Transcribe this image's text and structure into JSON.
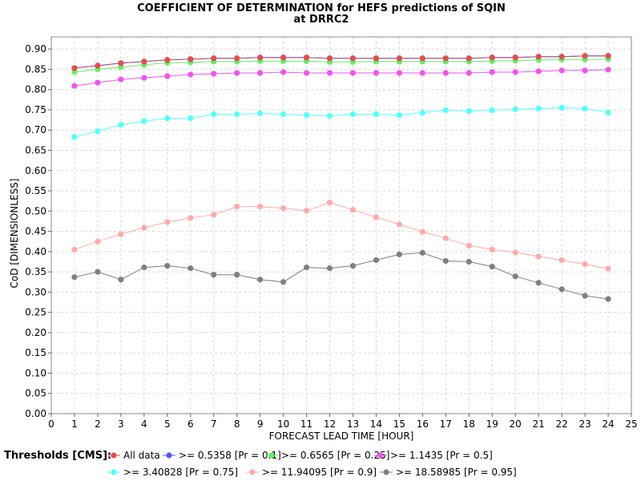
{
  "chart_data": {
    "type": "line",
    "title": "COEFFICIENT OF DETERMINATION for HEFS predictions of SQIN",
    "subtitle": "at DRRC2",
    "xlabel": "FORECAST LEAD TIME [HOUR]",
    "ylabel": "CoD [DIMENSIONLESS]",
    "xlim": [
      0,
      25
    ],
    "ylim": [
      0,
      0.93
    ],
    "xticks": [
      "0",
      "1",
      "2",
      "3",
      "4",
      "5",
      "6",
      "7",
      "8",
      "9",
      "10",
      "11",
      "12",
      "13",
      "14",
      "15",
      "16",
      "17",
      "18",
      "19",
      "20",
      "21",
      "22",
      "23",
      "24",
      "25"
    ],
    "yticks": [
      "0.00",
      "0.05",
      "0.10",
      "0.15",
      "0.20",
      "0.25",
      "0.30",
      "0.35",
      "0.40",
      "0.45",
      "0.50",
      "0.55",
      "0.60",
      "0.65",
      "0.70",
      "0.75",
      "0.80",
      "0.85",
      "0.90"
    ],
    "grid": true,
    "legend_title": "Thresholds [CMS]:",
    "legend_position": "bottom",
    "x": [
      1,
      2,
      3,
      4,
      5,
      6,
      7,
      8,
      9,
      10,
      11,
      12,
      13,
      14,
      15,
      16,
      17,
      18,
      19,
      20,
      21,
      22,
      23,
      24
    ],
    "series": [
      {
        "name": "All data",
        "color": "#e05050",
        "line_color": "#b05070",
        "values": [
          0.853,
          0.859,
          0.865,
          0.869,
          0.873,
          0.875,
          0.877,
          0.877,
          0.879,
          0.879,
          0.879,
          0.877,
          0.877,
          0.877,
          0.877,
          0.877,
          0.877,
          0.877,
          0.879,
          0.879,
          0.881,
          0.881,
          0.883,
          0.883
        ]
      },
      {
        "name": ">= 0.5358 [Pr = 0.1]",
        "color": "#5555ee",
        "line_color": "#5555ee",
        "values": [
          0.853,
          0.859,
          0.865,
          0.869,
          0.873,
          0.875,
          0.877,
          0.877,
          0.879,
          0.879,
          0.879,
          0.877,
          0.877,
          0.877,
          0.877,
          0.877,
          0.877,
          0.877,
          0.879,
          0.879,
          0.881,
          0.881,
          0.883,
          0.883
        ]
      },
      {
        "name": ">= 0.6565 [Pr = 0.25]",
        "color": "#66ee66",
        "line_color": "#66ee66",
        "values": [
          0.843,
          0.85,
          0.855,
          0.861,
          0.866,
          0.867,
          0.869,
          0.869,
          0.87,
          0.87,
          0.87,
          0.868,
          0.868,
          0.869,
          0.869,
          0.869,
          0.869,
          0.869,
          0.87,
          0.871,
          0.873,
          0.874,
          0.874,
          0.875
        ]
      },
      {
        "name": ">= 1.1435 [Pr = 0.5]",
        "color": "#ee55ee",
        "line_color": "#ee55ee",
        "values": [
          0.809,
          0.817,
          0.825,
          0.829,
          0.833,
          0.837,
          0.839,
          0.841,
          0.841,
          0.843,
          0.841,
          0.841,
          0.841,
          0.841,
          0.841,
          0.841,
          0.841,
          0.841,
          0.843,
          0.843,
          0.845,
          0.847,
          0.847,
          0.849
        ]
      },
      {
        "name": ">= 3.40828 [Pr = 0.75]",
        "color": "#55ffff",
        "line_color": "#55ffff",
        "values": [
          0.683,
          0.697,
          0.713,
          0.722,
          0.729,
          0.729,
          0.739,
          0.739,
          0.741,
          0.739,
          0.737,
          0.735,
          0.739,
          0.739,
          0.737,
          0.743,
          0.749,
          0.747,
          0.749,
          0.751,
          0.753,
          0.755,
          0.753,
          0.743
        ]
      },
      {
        "name": ">= 11.94095 [Pr = 0.9]",
        "color": "#ffaaaa",
        "line_color": "#ffaaaa",
        "values": [
          0.405,
          0.425,
          0.443,
          0.459,
          0.473,
          0.483,
          0.491,
          0.511,
          0.511,
          0.507,
          0.501,
          0.521,
          0.503,
          0.485,
          0.467,
          0.449,
          0.433,
          0.415,
          0.405,
          0.398,
          0.388,
          0.379,
          0.369,
          0.358
        ]
      },
      {
        "name": ">= 18.58985 [Pr = 0.95]",
        "color": "#808080",
        "line_color": "#808080",
        "values": [
          0.337,
          0.35,
          0.331,
          0.361,
          0.365,
          0.359,
          0.343,
          0.343,
          0.331,
          0.325,
          0.361,
          0.359,
          0.365,
          0.379,
          0.393,
          0.397,
          0.377,
          0.375,
          0.363,
          0.339,
          0.323,
          0.307,
          0.291,
          0.283
        ]
      }
    ]
  }
}
